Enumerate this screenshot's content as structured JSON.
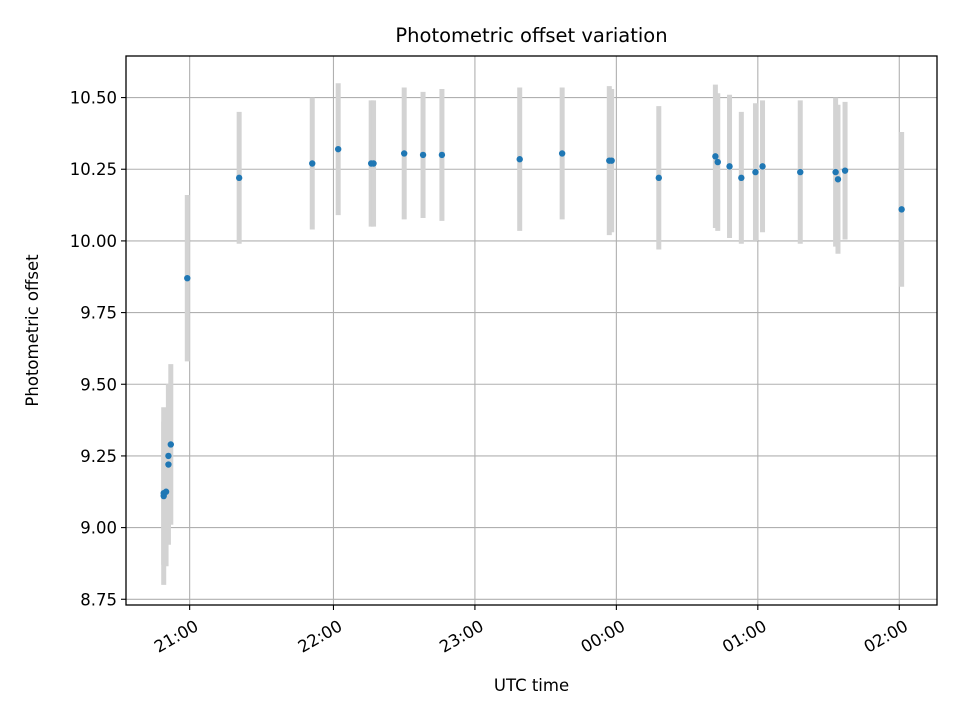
{
  "chart_data": {
    "type": "scatter",
    "title": "Photometric offset variation",
    "xlabel": "UTC time",
    "ylabel": "Photometric offset",
    "x_tick_labels": [
      "21:00",
      "22:00",
      "23:00",
      "00:00",
      "01:00",
      "02:00"
    ],
    "y_tick_labels": [
      "8.75",
      "9.00",
      "9.25",
      "9.50",
      "9.75",
      "10.00",
      "10.25",
      "10.50"
    ],
    "y_ticks": [
      8.75,
      9.0,
      9.25,
      9.5,
      9.75,
      10.0,
      10.25,
      10.5
    ],
    "x_ticks": [
      "20:59",
      "22:00",
      "23:00",
      "00:00",
      "01:00",
      "02:00"
    ],
    "xlim": [
      "20:32",
      "02:16"
    ],
    "ylim": [
      8.73,
      10.645
    ],
    "grid": true,
    "marker_color": "#1f77b4",
    "errorbar_color": "#d3d3d3",
    "series": [
      {
        "x": [
          "20:48",
          "20:48",
          "20:49",
          "20:50",
          "20:50",
          "20:51",
          "20:58",
          "21:20",
          "21:51",
          "22:02",
          "22:16",
          "22:17",
          "22:30",
          "22:38",
          "22:46",
          "23:19",
          "23:37",
          "23:57",
          "23:58",
          "00:18",
          "00:42",
          "00:43",
          "00:48",
          "00:53",
          "00:59",
          "01:02",
          "01:18",
          "01:33",
          "01:34",
          "01:37",
          "02:01"
        ],
        "y": [
          9.11,
          9.12,
          9.125,
          9.22,
          9.25,
          9.29,
          9.87,
          10.22,
          10.27,
          10.32,
          10.27,
          10.27,
          10.305,
          10.3,
          10.3,
          10.285,
          10.305,
          10.28,
          10.28,
          10.22,
          10.295,
          10.275,
          10.26,
          10.22,
          10.24,
          10.26,
          10.24,
          10.24,
          10.215,
          10.245,
          10.11
        ],
        "yerr": [
          0.31,
          0.25,
          0.26,
          0.28,
          0.25,
          0.28,
          0.29,
          0.23,
          0.23,
          0.23,
          0.22,
          0.22,
          0.23,
          0.22,
          0.23,
          0.25,
          0.23,
          0.26,
          0.25,
          0.25,
          0.25,
          0.24,
          0.25,
          0.23,
          0.24,
          0.23,
          0.25,
          0.26,
          0.26,
          0.24,
          0.27
        ]
      }
    ]
  }
}
